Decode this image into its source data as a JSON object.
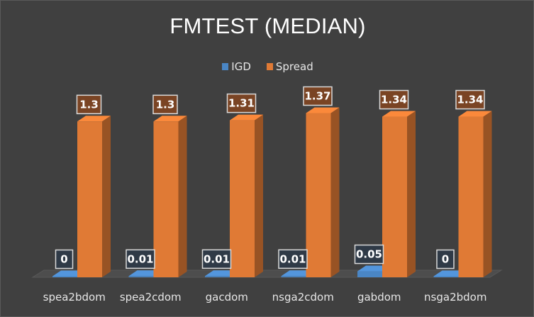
{
  "chart_data": {
    "type": "bar",
    "title": "FMTEST (MEDIAN)",
    "categories": [
      "spea2bdom",
      "spea2cdom",
      "gacdom",
      "nsga2cdom",
      "gabdom",
      "nsga2bdom"
    ],
    "series": [
      {
        "name": "IGD",
        "values": [
          0,
          0.01,
          0.01,
          0.01,
          0.05,
          0
        ],
        "color": "#4a86c5",
        "label_bg": "#2f3a47"
      },
      {
        "name": "Spread",
        "values": [
          1.3,
          1.3,
          1.31,
          1.37,
          1.34,
          1.34
        ],
        "color": "#e07a35",
        "label_bg": "#7a4424"
      }
    ],
    "ylim": [
      0,
      1.6
    ],
    "grid": false,
    "legend_position": "top",
    "style": "3d-clustered-column",
    "background": "#404040"
  }
}
